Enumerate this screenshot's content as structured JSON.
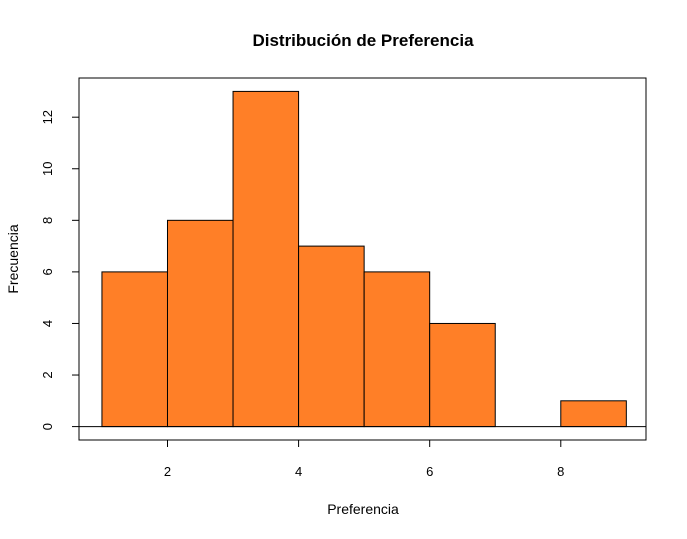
{
  "chart_data": {
    "type": "bar",
    "title": "Distribución de Preferencia",
    "xlabel": "Preferencia",
    "ylabel": "Frecuencia",
    "bins": [
      {
        "from": 1,
        "to": 2,
        "count": 6
      },
      {
        "from": 2,
        "to": 3,
        "count": 8
      },
      {
        "from": 3,
        "to": 4,
        "count": 13
      },
      {
        "from": 4,
        "to": 5,
        "count": 7
      },
      {
        "from": 5,
        "to": 6,
        "count": 6
      },
      {
        "from": 6,
        "to": 7,
        "count": 4
      },
      {
        "from": 7,
        "to": 8,
        "count": 0
      },
      {
        "from": 8,
        "to": 9,
        "count": 1
      }
    ],
    "xlim": [
      0.65,
      9.3
    ],
    "ylim": [
      -0.52,
      13.52
    ],
    "x_ticks": [
      "2",
      "4",
      "6",
      "8"
    ],
    "y_ticks": [
      "0",
      "2",
      "4",
      "6",
      "8",
      "10",
      "12"
    ],
    "bar_color": "#FF7F27",
    "grid": false,
    "legend": "none"
  }
}
